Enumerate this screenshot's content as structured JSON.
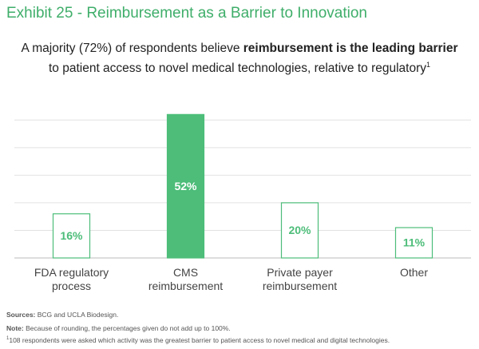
{
  "chart_data": {
    "type": "bar",
    "title": "Exhibit 25 - Reimbursement as a Barrier to Innovation",
    "subtitle": [
      "A majority (72%) of respondents believe ",
      "reimbursement is the leading barrier",
      "to patient access to novel medical technologies, relative to regulatory",
      "1"
    ],
    "categories": [
      "FDA regulatory process",
      "CMS reimbursement",
      "Private payer reimbursement",
      "Other"
    ],
    "values": [
      16,
      52,
      20,
      11
    ],
    "value_labels": [
      "16%",
      "52%",
      "20%",
      "11%"
    ],
    "color": "#4dbd79",
    "bar_fills": [
      "#ffffff",
      "#4dbd79",
      "#ffffff",
      "#ffffff"
    ],
    "label_colors": [
      "#4dbd79",
      "#ffffff",
      "#4dbd79",
      "#4dbd79"
    ],
    "ylim": [
      0,
      55
    ],
    "yticks": [
      0,
      10,
      20,
      30,
      40,
      50
    ],
    "grid": true,
    "footnotes": {
      "sources": {
        "label": "Sources:",
        "text": " BCG and UCLA Biodesign."
      },
      "note": {
        "label": "Note:",
        "text": " Because of rounding, the percentages given do not add up to 100%."
      },
      "footnote": {
        "marker": "1",
        "text": "108 respondents were asked which activity was the greatest barrier to patient access to novel medical and digital technologies."
      }
    }
  }
}
